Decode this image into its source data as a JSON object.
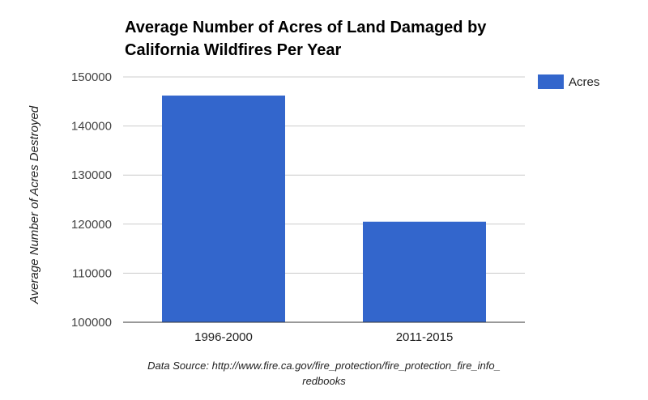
{
  "chart_data": {
    "type": "bar",
    "title_lines": [
      "Average Number of Acres of Land Damaged by",
      "California Wildfires Per Year"
    ],
    "categories": [
      "1996-2000",
      "2011-2015"
    ],
    "series": [
      {
        "name": "Acres",
        "values": [
          146200,
          120500
        ],
        "color": "#3366cc"
      }
    ],
    "ylabel": "Average Number of Acres Destroyed",
    "xlabel": "",
    "ylim": [
      100000,
      150000
    ],
    "yticks": [
      100000,
      110000,
      120000,
      130000,
      140000,
      150000
    ],
    "ytick_labels": [
      "100000",
      "110000",
      "120000",
      "130000",
      "140000",
      "150000"
    ],
    "grid": true,
    "legend_position": "right",
    "source_lines": [
      "Data Source: http://www.fire.ca.gov/fire_protection/fire_protection_fire_info_",
      "redbooks"
    ]
  }
}
